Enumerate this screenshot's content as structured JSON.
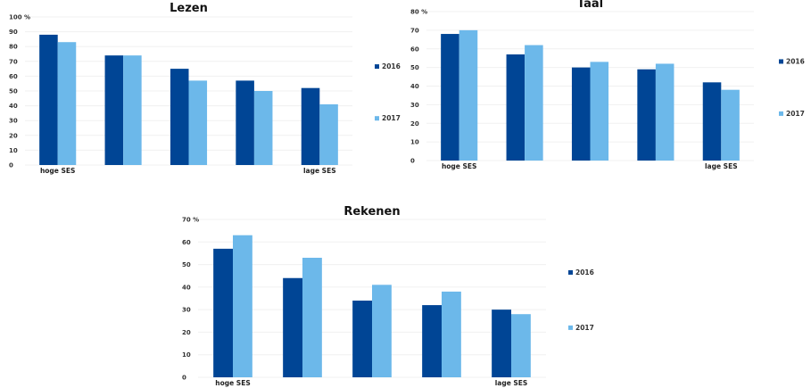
{
  "colors": {
    "2016": "#004595",
    "2017": "#6cb8ea"
  },
  "chart_data": [
    {
      "type": "bar",
      "title": "Lezen",
      "categories": [
        "hoge SES",
        "",
        "",
        "",
        "lage SES"
      ],
      "ylim": [
        0,
        100
      ],
      "yticks": [
        0,
        10,
        20,
        30,
        40,
        50,
        60,
        70,
        80,
        90,
        100
      ],
      "yunit": "%",
      "grid": true,
      "legend": "right",
      "series": [
        {
          "name": "2016",
          "values": [
            88,
            74,
            65,
            57,
            52
          ]
        },
        {
          "name": "2017",
          "values": [
            83,
            74,
            57,
            50,
            41
          ]
        }
      ]
    },
    {
      "type": "bar",
      "title": "Taal",
      "categories": [
        "hoge SES",
        "",
        "",
        "",
        "lage SES"
      ],
      "ylim": [
        0,
        80
      ],
      "yticks": [
        0,
        10,
        20,
        30,
        40,
        50,
        60,
        70,
        80
      ],
      "yunit": "%",
      "grid": true,
      "legend": "right",
      "series": [
        {
          "name": "2016",
          "values": [
            68,
            57,
            50,
            49,
            42
          ]
        },
        {
          "name": "2017",
          "values": [
            70,
            62,
            53,
            52,
            38
          ]
        }
      ]
    },
    {
      "type": "bar",
      "title": "Rekenen",
      "categories": [
        "hoge SES",
        "",
        "",
        "",
        "lage SES"
      ],
      "ylim": [
        0,
        70
      ],
      "yticks": [
        0,
        10,
        20,
        30,
        40,
        50,
        60,
        70
      ],
      "yunit": "%",
      "grid": true,
      "legend": "right",
      "series": [
        {
          "name": "2016",
          "values": [
            57,
            44,
            34,
            32,
            30
          ]
        },
        {
          "name": "2017",
          "values": [
            63,
            53,
            41,
            38,
            28
          ]
        }
      ]
    }
  ]
}
